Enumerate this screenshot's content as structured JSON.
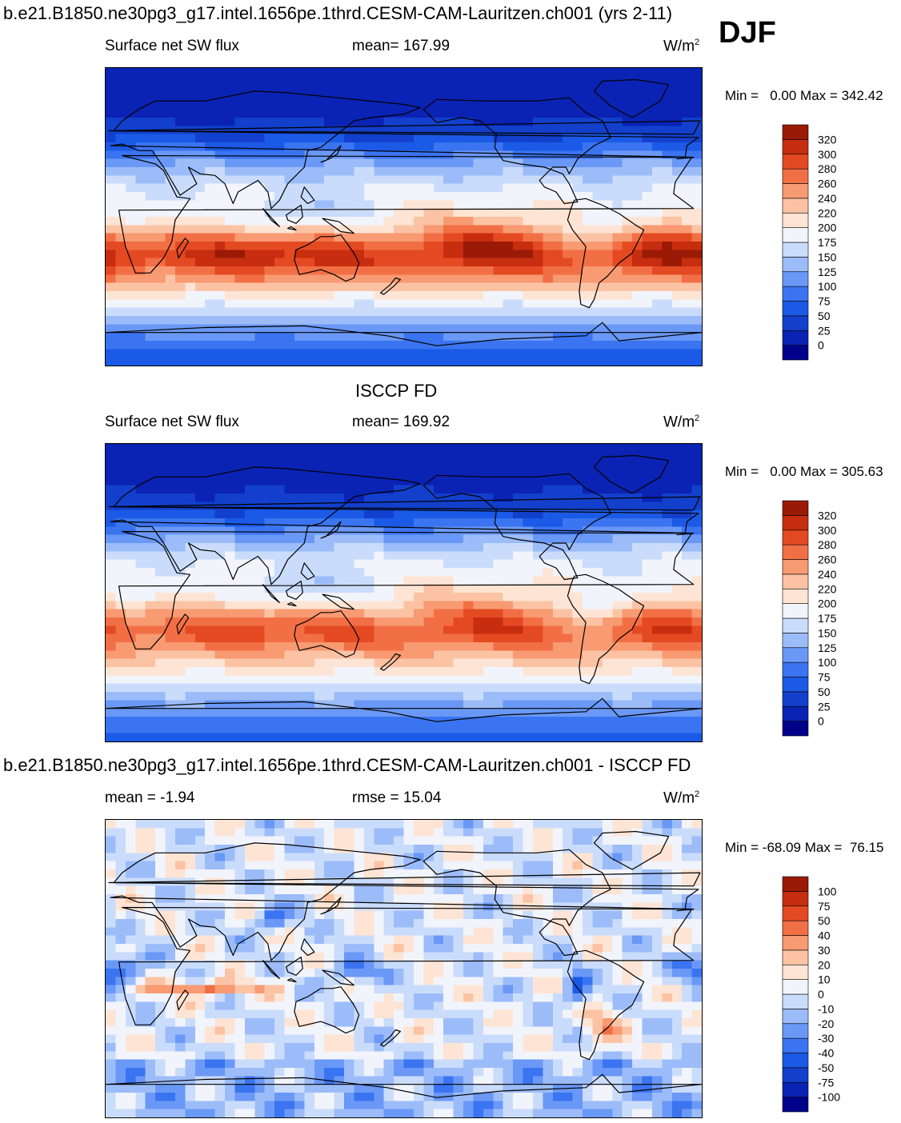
{
  "season": "DJF",
  "panels": [
    {
      "id": "model",
      "title": "b.e21.B1850.ne30pg3_g17.intel.1656pe.1thrd.CESM-CAM-Lauritzen.ch001 (yrs 2-11)",
      "left_label": "Surface net SW flux",
      "center_label": "mean= 167.99",
      "units": "W/m",
      "units_sup": "2",
      "min_label": "Min =",
      "min_value": "0.00",
      "max_label": "Max =",
      "max_value": "342.42"
    },
    {
      "id": "obs",
      "title": "ISCCP FD",
      "left_label": "Surface net SW flux",
      "center_label": "mean= 169.92",
      "units": "W/m",
      "units_sup": "2",
      "min_label": "Min =",
      "min_value": "0.00",
      "max_label": "Max =",
      "max_value": "305.63"
    },
    {
      "id": "diff",
      "title": "b.e21.B1850.ne30pg3_g17.intel.1656pe.1thrd.CESM-CAM-Lauritzen.ch001 - ISCCP FD",
      "left_label": "mean =  -1.94",
      "center_label": "rmse =  15.04",
      "units": "W/m",
      "units_sup": "2",
      "min_label": "Min =",
      "min_value": "-68.09",
      "max_label": "Max =",
      "max_value": "76.15"
    }
  ],
  "colorbars": {
    "abs_levels": [
      "0",
      "25",
      "50",
      "75",
      "100",
      "125",
      "150",
      "175",
      "200",
      "220",
      "240",
      "260",
      "280",
      "300",
      "320"
    ],
    "abs_colors": [
      "#00008b",
      "#0a23b4",
      "#1240cc",
      "#1a5ae6",
      "#3a74f0",
      "#6a98f6",
      "#9cbcf9",
      "#cadcfb",
      "#f2f4fb",
      "#fde4d4",
      "#fbc3a4",
      "#f89a72",
      "#f26f45",
      "#e44a22",
      "#c72d0f",
      "#9a1a06"
    ],
    "diff_levels": [
      "-100",
      "-75",
      "-50",
      "-40",
      "-30",
      "-20",
      "-10",
      "0",
      "10",
      "20",
      "30",
      "40",
      "50",
      "75",
      "100"
    ],
    "diff_colors": [
      "#00008b",
      "#0a23b4",
      "#1240cc",
      "#1a5ae6",
      "#3a74f0",
      "#6a98f6",
      "#9cbcf9",
      "#cadcfb",
      "#f2f4fb",
      "#fde4d4",
      "#fbc3a4",
      "#f89a72",
      "#f26f45",
      "#e44a22",
      "#c72d0f",
      "#9a1a06"
    ]
  },
  "chart_data": [
    {
      "type": "heatmap",
      "title": "b.e21.B1850.ne30pg3_g17.intel.1656pe.1thrd.CESM-CAM-Lauritzen.ch001 (yrs 2-11)",
      "variable": "Surface net SW flux",
      "season": "DJF",
      "units": "W/m2",
      "mean": 167.99,
      "min": 0.0,
      "max": 342.42,
      "contour_levels": [
        0,
        25,
        50,
        75,
        100,
        125,
        150,
        175,
        200,
        220,
        240,
        260,
        280,
        300,
        320
      ],
      "zonal_profile_lat": [
        90,
        70,
        50,
        35,
        20,
        5,
        -10,
        -25,
        -40,
        -55,
        -70,
        -90
      ],
      "zonal_profile_values": [
        0,
        5,
        40,
        110,
        170,
        205,
        240,
        290,
        240,
        170,
        110,
        45
      ]
    },
    {
      "type": "heatmap",
      "title": "ISCCP FD",
      "variable": "Surface net SW flux",
      "season": "DJF",
      "units": "W/m2",
      "mean": 169.92,
      "min": 0.0,
      "max": 305.63,
      "contour_levels": [
        0,
        25,
        50,
        75,
        100,
        125,
        150,
        175,
        200,
        220,
        240,
        260,
        280,
        300,
        320
      ],
      "zonal_profile_lat": [
        90,
        70,
        50,
        35,
        20,
        5,
        -10,
        -25,
        -40,
        -55,
        -70,
        -90
      ],
      "zonal_profile_values": [
        0,
        8,
        45,
        115,
        175,
        205,
        235,
        270,
        230,
        180,
        110,
        60
      ]
    },
    {
      "type": "heatmap",
      "title": "b.e21.B1850.ne30pg3_g17.intel.1656pe.1thrd.CESM-CAM-Lauritzen.ch001 - ISCCP FD",
      "variable": "Surface net SW flux difference",
      "season": "DJF",
      "units": "W/m2",
      "mean": -1.94,
      "rmse": 15.04,
      "min": -68.09,
      "max": 76.15,
      "contour_levels": [
        -100,
        -75,
        -50,
        -40,
        -30,
        -20,
        -10,
        0,
        10,
        20,
        30,
        40,
        50,
        75,
        100
      ]
    }
  ]
}
